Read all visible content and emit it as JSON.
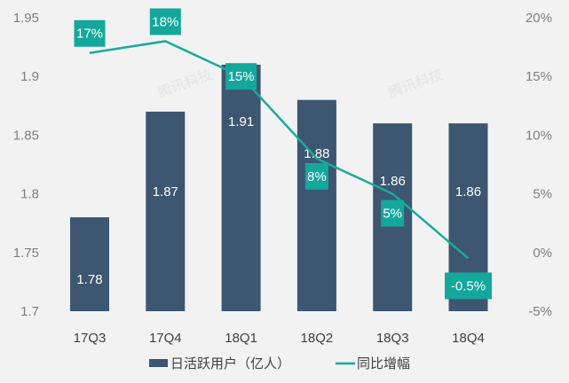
{
  "chart_data": {
    "type": "bar+line",
    "categories": [
      "17Q3",
      "17Q4",
      "18Q1",
      "18Q2",
      "18Q3",
      "18Q4"
    ],
    "series": [
      {
        "name": "日活跃用户（亿人）",
        "type": "bar",
        "axis": "left",
        "values": [
          1.78,
          1.87,
          1.91,
          1.88,
          1.86,
          1.86
        ],
        "labels": [
          "1.78",
          "1.87",
          "1.91",
          "1.88",
          "1.86",
          "1.86"
        ],
        "color": "#3d5671"
      },
      {
        "name": "同比增幅",
        "type": "line",
        "axis": "right",
        "values": [
          17,
          18,
          15,
          8,
          5,
          -0.5
        ],
        "labels": [
          "17%",
          "18%",
          "15%",
          "8%",
          "5%",
          "-0.5%"
        ],
        "color": "#1aaa9c"
      }
    ],
    "ylim_left": [
      1.7,
      1.95
    ],
    "yticks_left": [
      "1.7",
      "1.75",
      "1.8",
      "1.85",
      "1.9",
      "1.95"
    ],
    "ylim_right": [
      -5,
      20
    ],
    "yticks_right": [
      "-5%",
      "0%",
      "5%",
      "10%",
      "15%",
      "20%"
    ],
    "grid": false,
    "legend_position": "bottom",
    "watermark": "腾讯科技"
  }
}
